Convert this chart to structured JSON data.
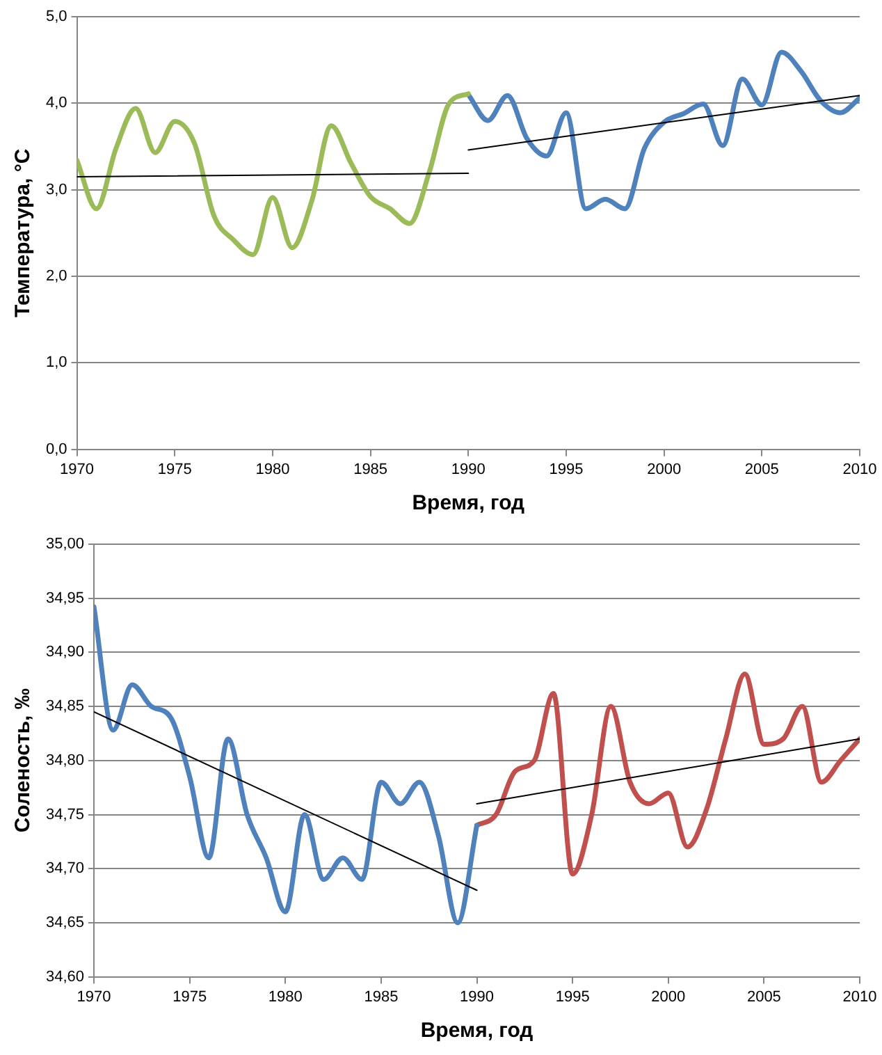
{
  "chart_data": [
    {
      "type": "line",
      "xlabel": "Время, год",
      "ylabel": "Температура, °С",
      "xlim": [
        1970,
        2010
      ],
      "xticks": [
        1970,
        1975,
        1980,
        1985,
        1990,
        1995,
        2000,
        2005,
        2010
      ],
      "ylim": [
        0,
        5
      ],
      "yticks": [
        {
          "value": 0,
          "label": "0,0"
        },
        {
          "value": 1,
          "label": "1,0"
        },
        {
          "value": 2,
          "label": "2,0"
        },
        {
          "value": 3,
          "label": "3,0"
        },
        {
          "value": 4,
          "label": "4,0"
        },
        {
          "value": 5,
          "label": "5,0"
        }
      ],
      "grid": "y",
      "legend": false,
      "series": [
        {
          "color": "#9bbb59",
          "x": [
            1970,
            1971,
            1972,
            1973,
            1974,
            1975,
            1976,
            1977,
            1978,
            1979,
            1980,
            1981,
            1982,
            1983,
            1984,
            1985,
            1986,
            1987,
            1988,
            1989,
            1990
          ],
          "values": [
            3.34,
            2.78,
            3.48,
            3.94,
            3.43,
            3.79,
            3.54,
            2.7,
            2.42,
            2.25,
            2.91,
            2.33,
            2.87,
            3.74,
            3.31,
            2.92,
            2.78,
            2.61,
            3.2,
            3.99,
            4.11
          ]
        },
        {
          "color": "#4f81bd",
          "x": [
            1990,
            1991,
            1992,
            1993,
            1994,
            1995,
            1996,
            1997,
            1998,
            1999,
            2000,
            2001,
            2002,
            2003,
            2004,
            2005,
            2006,
            2007,
            2008,
            2009,
            2010
          ],
          "values": [
            4.1,
            3.8,
            4.09,
            3.59,
            3.39,
            3.89,
            2.78,
            2.89,
            2.78,
            3.48,
            3.78,
            3.88,
            3.99,
            3.51,
            4.28,
            3.98,
            4.59,
            4.37,
            4.03,
            3.89,
            4.06
          ]
        },
        {
          "type": "line",
          "color": "#000000",
          "x": [
            1970,
            1990
          ],
          "values": [
            3.15,
            3.19
          ]
        },
        {
          "type": "line",
          "color": "#000000",
          "x": [
            1990,
            2010
          ],
          "values": [
            3.46,
            4.09
          ]
        }
      ]
    },
    {
      "type": "line",
      "xlabel": "Время, год",
      "ylabel": "Соленость, ‰",
      "xlim": [
        1970,
        2010
      ],
      "xticks": [
        1970,
        1975,
        1980,
        1985,
        1990,
        1995,
        2000,
        2005,
        2010
      ],
      "ylim": [
        34.6,
        35
      ],
      "yticks": [
        {
          "value": 34.6,
          "label": "34,60"
        },
        {
          "value": 34.65,
          "label": "34,65"
        },
        {
          "value": 34.7,
          "label": "34,70"
        },
        {
          "value": 34.75,
          "label": "34,75"
        },
        {
          "value": 34.8,
          "label": "34,80"
        },
        {
          "value": 34.85,
          "label": "34,85"
        },
        {
          "value": 34.9,
          "label": "34,90"
        },
        {
          "value": 34.95,
          "label": "34,95"
        },
        {
          "value": 35,
          "label": "35,00"
        }
      ],
      "grid": "y",
      "legend": false,
      "series": [
        {
          "color": "#4f81bd",
          "x": [
            1970,
            1971,
            1972,
            1973,
            1974,
            1975,
            1976,
            1977,
            1978,
            1979,
            1980,
            1981,
            1982,
            1983,
            1984,
            1985,
            1986,
            1987,
            1988,
            1989,
            1990
          ],
          "values": [
            34.942,
            34.828,
            34.87,
            34.85,
            34.84,
            34.785,
            34.71,
            34.82,
            34.75,
            34.71,
            34.66,
            34.75,
            34.69,
            34.71,
            34.69,
            34.78,
            34.76,
            34.78,
            34.73,
            34.65,
            34.74
          ]
        },
        {
          "color": "#c0504d",
          "x": [
            1990,
            1991,
            1992,
            1993,
            1994,
            1995,
            1996,
            1997,
            1998,
            1999,
            2000,
            2001,
            2002,
            2003,
            2004,
            2005,
            2006,
            2007,
            2008,
            2009,
            2010
          ],
          "values": [
            34.74,
            34.75,
            34.79,
            34.8,
            34.862,
            34.695,
            34.75,
            34.85,
            34.78,
            34.76,
            34.77,
            34.72,
            34.755,
            34.82,
            34.88,
            34.815,
            34.82,
            34.85,
            34.78,
            34.8,
            34.82
          ]
        },
        {
          "type": "line",
          "color": "#000000",
          "x": [
            1970,
            1990
          ],
          "values": [
            34.845,
            34.68
          ]
        },
        {
          "type": "line",
          "color": "#000000",
          "x": [
            1990,
            2010
          ],
          "values": [
            34.76,
            34.82
          ]
        }
      ]
    }
  ]
}
